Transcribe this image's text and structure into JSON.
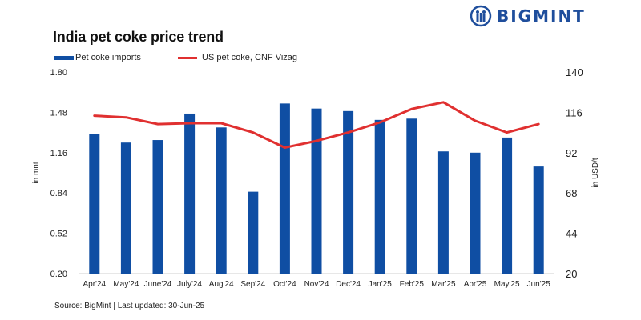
{
  "header": {
    "title": "India pet coke price trend",
    "brand": "BIGMINT"
  },
  "footer": {
    "source": "Source: BigMint | Last updated: 30-Jun-25"
  },
  "colors": {
    "bar": "#0f4ea3",
    "line": "#e03030",
    "brand": "#1f4e9c"
  },
  "chart_data": {
    "type": "bar",
    "title": "India pet coke price trend",
    "categories": [
      "Apr'24",
      "May'24",
      "June'24",
      "July'24",
      "Aug'24",
      "Sep'24",
      "Oct'24",
      "Nov'24",
      "Dec'24",
      "Jan'25",
      "Feb'25",
      "Mar'25",
      "Apr'25",
      "May'25",
      "Jun'25"
    ],
    "series": [
      {
        "name": "Pet coke imports",
        "type": "bar",
        "axis": "left",
        "values": [
          1.31,
          1.24,
          1.26,
          1.47,
          1.36,
          0.85,
          1.55,
          1.51,
          1.49,
          1.42,
          1.43,
          1.17,
          1.16,
          1.28,
          1.05
        ]
      },
      {
        "name": "US pet coke, CNF Vizag",
        "type": "line",
        "axis": "right",
        "values": [
          114,
          113,
          109,
          109.5,
          109.5,
          104,
          95,
          99,
          104,
          110,
          118,
          122,
          111,
          104,
          109
        ]
      }
    ],
    "ylabel": "in mnt",
    "y2label": "in USD/t",
    "ylim": [
      0.2,
      1.8
    ],
    "y2lim": [
      20,
      140
    ],
    "yticks": [
      "1.80",
      "1.48",
      "1.16",
      "0.84",
      "0.52",
      "0.20"
    ],
    "y2ticks": [
      "140",
      "116",
      "92",
      "68",
      "44",
      "20"
    ],
    "grid": false,
    "legend_position": "top-left"
  }
}
